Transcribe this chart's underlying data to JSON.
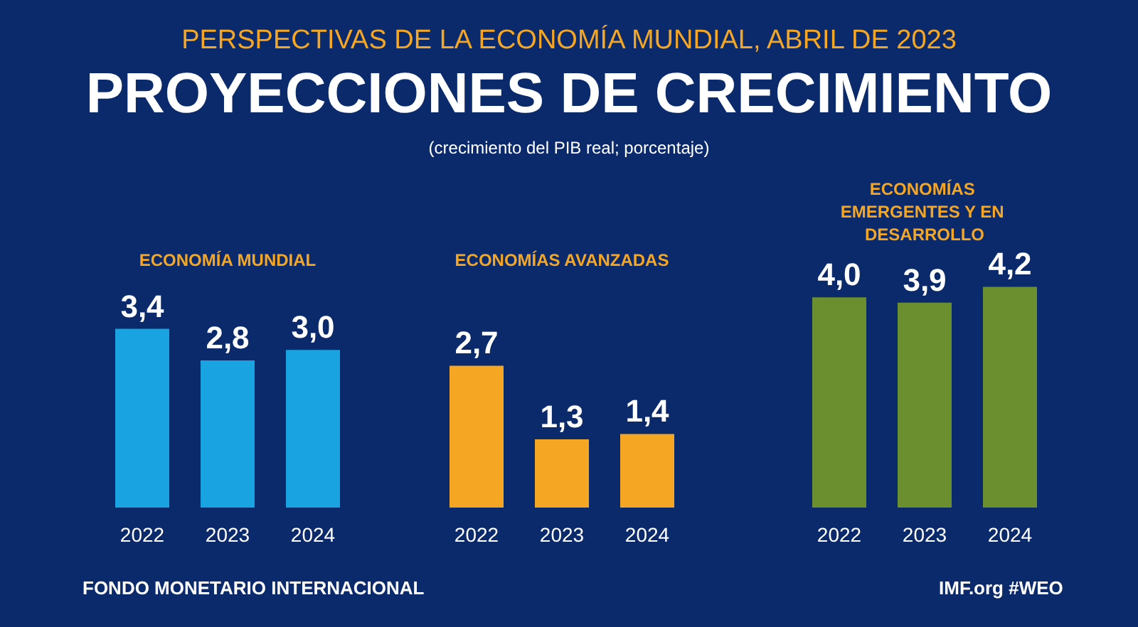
{
  "chart_data": [
    {
      "type": "bar",
      "title": "ECONOMÍA MUNDIAL",
      "categories": [
        "2022",
        "2023",
        "2024"
      ],
      "values": [
        3.4,
        2.8,
        3.0
      ],
      "value_labels": [
        "3,4",
        "2,8",
        "3,0"
      ],
      "color": "#19a3e0",
      "annotations": [
        "PERSPECTIVAS DE LA ECONOMÍA MUNDIAL, ABRIL DE 2023",
        "PROYECCIONES DE CRECIMIENTO",
        "(crecimiento del PIB real; porcentaje)",
        "FONDO MONETARIO INTERNACIONAL",
        "IMF.org #WEO"
      ]
    },
    {
      "type": "bar",
      "title": "ECONOMÍAS AVANZADAS",
      "categories": [
        "2022",
        "2023",
        "2024"
      ],
      "values": [
        2.7,
        1.3,
        1.4
      ],
      "value_labels": [
        "2,7",
        "1,3",
        "1,4"
      ],
      "color": "#f5a623"
    },
    {
      "type": "bar",
      "title": "ECONOMÍAS EMERGENTES Y EN DESARROLLO",
      "categories": [
        "2022",
        "2023",
        "2024"
      ],
      "values": [
        4.0,
        3.9,
        4.2
      ],
      "value_labels": [
        "4,0",
        "3,9",
        "4,2"
      ],
      "color": "#6b8e2f"
    }
  ]
}
